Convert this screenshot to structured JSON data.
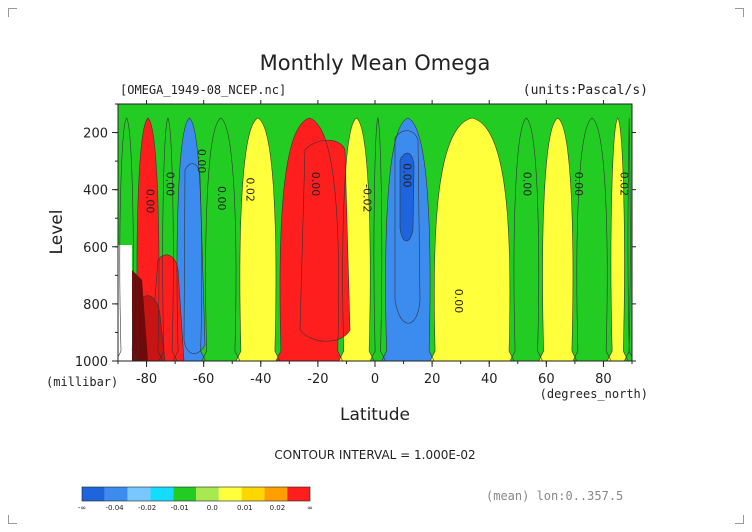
{
  "chart_data": {
    "type": "heatmap",
    "title": "Monthly Mean Omega",
    "file_label": "[OMEGA_1949-08_NCEP.nc]",
    "units_label": "(units:Pascal/s)",
    "xlabel": "Latitude",
    "x_unit": "(degrees_north)",
    "ylabel": "Level",
    "y_unit": "(millibar)",
    "xlim": [
      -90,
      90
    ],
    "ylim": [
      1000,
      100
    ],
    "x_ticks": [
      "-80",
      "-60",
      "-40",
      "-20",
      "0",
      "20",
      "40",
      "60",
      "80"
    ],
    "y_ticks": [
      "200",
      "400",
      "600",
      "800",
      "1000"
    ],
    "contour_interval": "CONTOUR INTERVAL = 1.000E-02",
    "contour_labels": [
      "0.00",
      "0.00",
      "0.00",
      "0.00",
      "0.02",
      "0.00",
      "-0.02",
      "0.00",
      "0.00",
      "0.00",
      "0.00",
      "0.02"
    ],
    "legend": {
      "colors": [
        "#1e64dc",
        "#3c8cf0",
        "#78c8ff",
        "#14dcff",
        "#22cc22",
        "#a8e850",
        "#ffff3c",
        "#ffd700",
        "#ffa000",
        "#ff1e1e"
      ],
      "labels": [
        "-∞",
        "-0.04",
        "-0.02",
        "-0.01",
        "0.0",
        "0.01",
        "0.02",
        "∞"
      ]
    },
    "footer_note": "(mean) lon:0..357.5",
    "bands": [
      {
        "x0": -90,
        "x1": -84,
        "value": 0.0
      },
      {
        "x0": -84,
        "x1": -75,
        "value": 0.03
      },
      {
        "x0": -75,
        "x1": -70,
        "value": 0.0
      },
      {
        "x0": -70,
        "x1": -60,
        "value": -0.02
      },
      {
        "x0": -60,
        "x1": -48,
        "value": 0.0
      },
      {
        "x0": -48,
        "x1": -34,
        "value": 0.005
      },
      {
        "x0": -34,
        "x1": -12,
        "value": 0.025
      },
      {
        "x0": -12,
        "x1": -1,
        "value": 0.005
      },
      {
        "x0": -1,
        "x1": 3,
        "value": 0.0
      },
      {
        "x0": 3,
        "x1": 20,
        "value": -0.025
      },
      {
        "x0": 20,
        "x1": 48,
        "value": 0.005
      },
      {
        "x0": 48,
        "x1": 58,
        "value": 0.0
      },
      {
        "x0": 58,
        "x1": 70,
        "value": 0.005
      },
      {
        "x0": 70,
        "x1": 82,
        "value": 0.0
      },
      {
        "x0": 82,
        "x1": 88,
        "value": 0.005
      },
      {
        "x0": 88,
        "x1": 90,
        "value": 0.0
      }
    ]
  }
}
